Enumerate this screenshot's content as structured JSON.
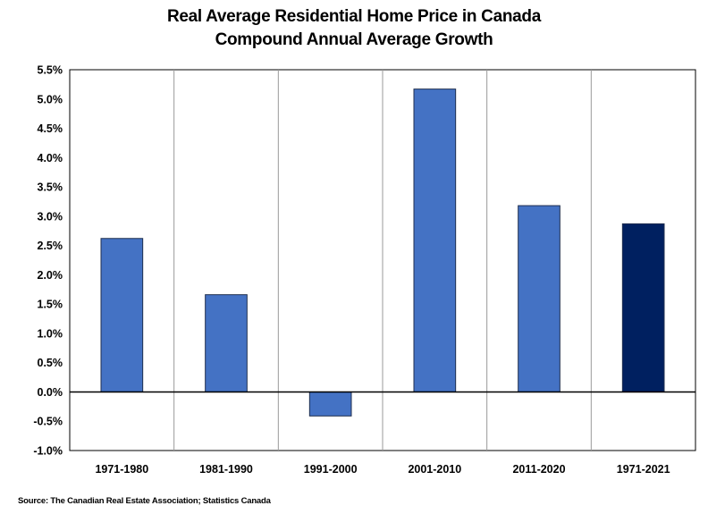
{
  "chart_data": {
    "type": "bar",
    "title_line1": "Real Average Residential Home Price in Canada",
    "title_line2": "Compound Annual Average Growth",
    "categories": [
      "1971-1980",
      "1981-1990",
      "1991-2000",
      "2001-2010",
      "2011-2020",
      "1971-2021"
    ],
    "values": [
      2.62,
      1.66,
      -0.41,
      5.17,
      3.18,
      2.87
    ],
    "ylim": [
      -1.0,
      5.5
    ],
    "ytick_step": 0.5,
    "ytick_labels": [
      "5.5%",
      "5.0%",
      "4.5%",
      "4.0%",
      "3.5%",
      "3.0%",
      "2.5%",
      "2.0%",
      "1.5%",
      "1.0%",
      "0.5%",
      "0.0%",
      "-0.5%",
      "-1.0%"
    ],
    "grid": "vertical",
    "bar_colors": [
      "#4472c4",
      "#4472c4",
      "#4472c4",
      "#4472c4",
      "#4472c4",
      "#002060"
    ],
    "source": "Source: The Canadian Real Estate Association; Statistics Canada"
  }
}
